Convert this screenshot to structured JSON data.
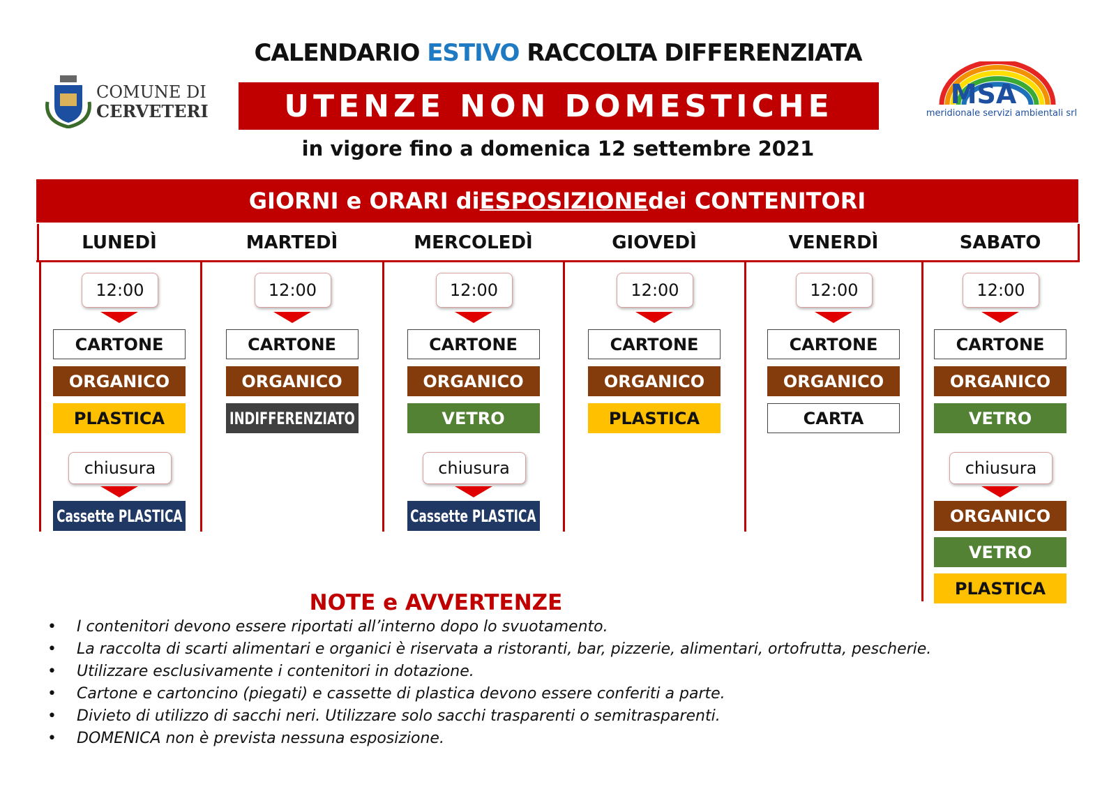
{
  "header": {
    "title": [
      "CALENDARIO",
      "ESTIVO",
      "RACCOLTA DIFFERENZIATA"
    ],
    "banner": "UTENZE NON DOMESTICHE",
    "validity": "in vigore fino a domenica 12 settembre 2021"
  },
  "logos": {
    "left": [
      "COMUNE DI",
      "CERVETERI"
    ],
    "right": {
      "name": "MSA",
      "tagline": "meridionale servizi ambientali srl"
    }
  },
  "schedule": {
    "title": [
      "GIORNI e ORARI di",
      "ESPOSIZIONE",
      "dei CONTENITORI"
    ],
    "days": [
      {
        "name": "LUNEDÌ",
        "time": "12:00",
        "items": [
          {
            "label": "CARTONE",
            "color": "#ffffff"
          },
          {
            "label": "ORGANICO",
            "color": "#843c0c"
          },
          {
            "label": "PLASTICA",
            "color": "#ffc000"
          }
        ],
        "closing": {
          "label": "chiusura",
          "items": [
            {
              "label": "Cassette PLASTICA",
              "color": "#1f3864"
            }
          ]
        }
      },
      {
        "name": "MARTEDÌ",
        "time": "12:00",
        "items": [
          {
            "label": "CARTONE",
            "color": "#ffffff"
          },
          {
            "label": "ORGANICO",
            "color": "#843c0c"
          },
          {
            "label": "INDIFFERENZIATO",
            "color": "#404040"
          }
        ]
      },
      {
        "name": "MERCOLEDÌ",
        "time": "12:00",
        "items": [
          {
            "label": "CARTONE",
            "color": "#ffffff"
          },
          {
            "label": "ORGANICO",
            "color": "#843c0c"
          },
          {
            "label": "VETRO",
            "color": "#548235"
          }
        ],
        "closing": {
          "label": "chiusura",
          "items": [
            {
              "label": "Cassette PLASTICA",
              "color": "#1f3864"
            }
          ]
        }
      },
      {
        "name": "GIOVEDÌ",
        "time": "12:00",
        "items": [
          {
            "label": "CARTONE",
            "color": "#ffffff"
          },
          {
            "label": "ORGANICO",
            "color": "#843c0c"
          },
          {
            "label": "PLASTICA",
            "color": "#ffc000"
          }
        ]
      },
      {
        "name": "VENERDÌ",
        "time": "12:00",
        "items": [
          {
            "label": "CARTONE",
            "color": "#ffffff"
          },
          {
            "label": "ORGANICO",
            "color": "#843c0c"
          },
          {
            "label": "CARTA",
            "color": "#ffffff"
          }
        ]
      },
      {
        "name": "SABATO",
        "time": "12:00",
        "items": [
          {
            "label": "CARTONE",
            "color": "#ffffff"
          },
          {
            "label": "ORGANICO",
            "color": "#843c0c"
          },
          {
            "label": "VETRO",
            "color": "#548235"
          }
        ],
        "closing": {
          "label": "chiusura",
          "items": [
            {
              "label": "ORGANICO",
              "color": "#843c0c"
            },
            {
              "label": "VETRO",
              "color": "#548235"
            },
            {
              "label": "PLASTICA",
              "color": "#ffc000"
            }
          ]
        }
      }
    ]
  },
  "notes": {
    "title": "NOTE e AVVERTENZE",
    "items": [
      "I contenitori devono essere riportati all’interno dopo lo svuotamento.",
      "La raccolta di scarti alimentari e organici è riservata a ristoranti, bar, pizzerie, alimentari, ortofrutta, pescherie.",
      "Utilizzare esclusivamente i contenitori in dotazione.",
      "Cartone e cartoncino (piegati) e cassette di plastica devono essere conferiti  a parte.",
      "Divieto di utilizzo di sacchi neri. Utilizzare solo sacchi trasparenti o semitrasparenti.",
      "DOMENICA non è prevista nessuna esposizione."
    ]
  }
}
